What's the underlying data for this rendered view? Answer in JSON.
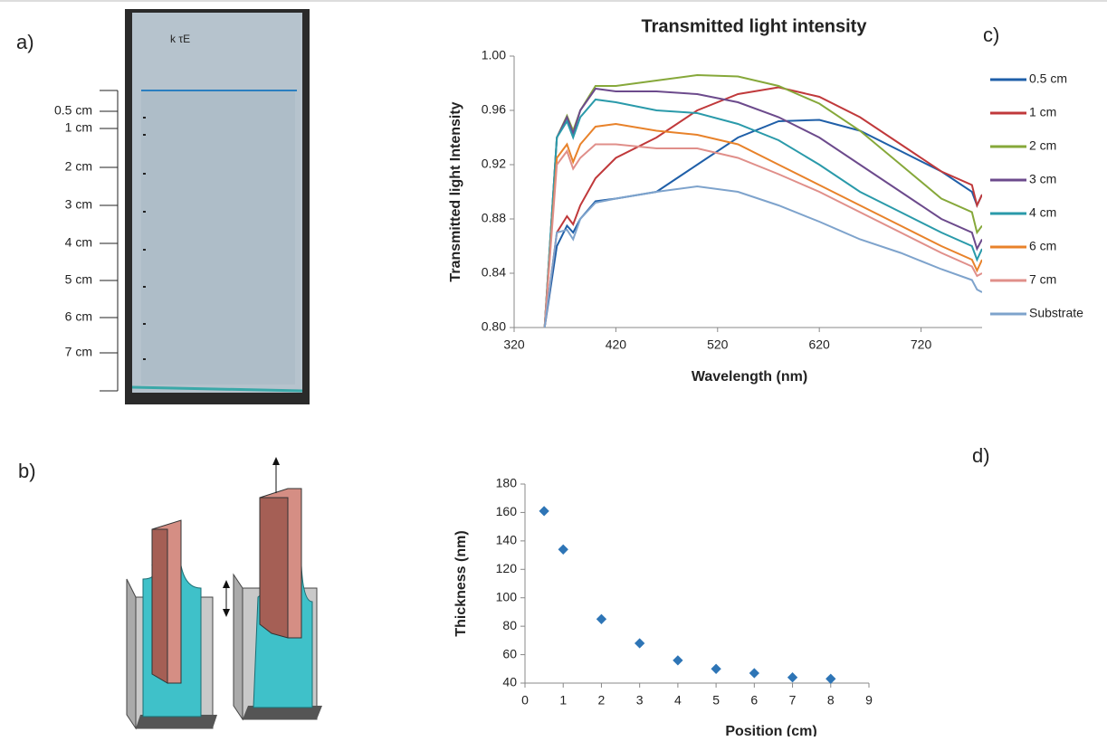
{
  "panel_labels": {
    "a": "a)",
    "b": "b)"
  },
  "photo_scale": [
    "0.5 cm",
    "1 cm",
    "2 cm",
    "3 cm",
    "4 cm",
    "5 cm",
    "6 cm",
    "7 cm"
  ],
  "chart_data": [
    {
      "type": "line",
      "title": "Transmitted light intensity",
      "panel_label": "c)",
      "x_label": "Wavelength (nm)",
      "y_label": "Transmitted light Intensity",
      "x": [
        350,
        362,
        372,
        378,
        385,
        400,
        420,
        460,
        500,
        540,
        580,
        620,
        660,
        700,
        740,
        770,
        775,
        780
      ],
      "series": [
        {
          "name": "0.5 cm",
          "color": "#1f5fa8",
          "values": [
            0.8,
            0.86,
            0.875,
            0.87,
            0.88,
            0.893,
            0.895,
            0.9,
            0.92,
            0.94,
            0.952,
            0.953,
            0.945,
            0.93,
            0.915,
            0.9,
            0.89,
            0.898
          ]
        },
        {
          "name": "1 cm",
          "color": "#c0393b",
          "values": [
            0.8,
            0.87,
            0.882,
            0.876,
            0.89,
            0.91,
            0.925,
            0.94,
            0.96,
            0.972,
            0.977,
            0.97,
            0.955,
            0.935,
            0.915,
            0.905,
            0.89,
            0.898
          ]
        },
        {
          "name": "2 cm",
          "color": "#86a83a",
          "values": [
            0.8,
            0.94,
            0.956,
            0.945,
            0.96,
            0.978,
            0.978,
            0.982,
            0.986,
            0.985,
            0.978,
            0.965,
            0.945,
            0.92,
            0.895,
            0.885,
            0.87,
            0.875
          ]
        },
        {
          "name": "3 cm",
          "color": "#6c4a8c",
          "values": [
            0.8,
            0.94,
            0.955,
            0.943,
            0.96,
            0.976,
            0.974,
            0.974,
            0.972,
            0.966,
            0.955,
            0.94,
            0.92,
            0.9,
            0.88,
            0.87,
            0.858,
            0.865
          ]
        },
        {
          "name": "4 cm",
          "color": "#2a9aaa",
          "values": [
            0.8,
            0.94,
            0.952,
            0.94,
            0.955,
            0.968,
            0.966,
            0.96,
            0.958,
            0.95,
            0.938,
            0.92,
            0.9,
            0.885,
            0.87,
            0.86,
            0.85,
            0.858
          ]
        },
        {
          "name": "6 cm",
          "color": "#e8822a",
          "values": [
            0.8,
            0.925,
            0.935,
            0.922,
            0.935,
            0.948,
            0.95,
            0.945,
            0.942,
            0.935,
            0.92,
            0.905,
            0.89,
            0.875,
            0.86,
            0.85,
            0.842,
            0.85
          ]
        },
        {
          "name": "7 cm",
          "color": "#e08f8a",
          "values": [
            0.8,
            0.92,
            0.93,
            0.917,
            0.925,
            0.935,
            0.935,
            0.932,
            0.932,
            0.925,
            0.913,
            0.9,
            0.885,
            0.87,
            0.855,
            0.845,
            0.838,
            0.84
          ]
        },
        {
          "name": "Substrate",
          "color": "#7ea3cc",
          "values": [
            0.8,
            0.87,
            0.872,
            0.865,
            0.88,
            0.892,
            0.895,
            0.9,
            0.904,
            0.9,
            0.89,
            0.878,
            0.865,
            0.855,
            0.843,
            0.835,
            0.828,
            0.826
          ]
        }
      ],
      "xlim": [
        320,
        780
      ],
      "ylim": [
        0.8,
        1.0
      ],
      "xticks": [
        320,
        420,
        520,
        620,
        720
      ],
      "yticks": [
        {
          "value": 0.8,
          "label": "0.80"
        },
        0.84,
        0.88,
        0.92,
        0.96,
        {
          "value": 1.0,
          "label": "1.00"
        }
      ]
    },
    {
      "type": "scatter",
      "panel_label": "d)",
      "x_label": "Position (cm)",
      "y_label": "Thickness (nm)",
      "x": [
        0.5,
        1,
        2,
        3,
        4,
        5,
        6,
        7,
        8
      ],
      "values": [
        161,
        134,
        85,
        68,
        56,
        50,
        47,
        44,
        43
      ],
      "color": "#2e75b6",
      "xlim": [
        0,
        9
      ],
      "ylim": [
        40,
        180
      ],
      "xticks": [
        0,
        1,
        2,
        3,
        4,
        5,
        6,
        7,
        8,
        9
      ],
      "yticks": [
        40,
        60,
        80,
        100,
        120,
        140,
        160,
        180
      ]
    }
  ]
}
